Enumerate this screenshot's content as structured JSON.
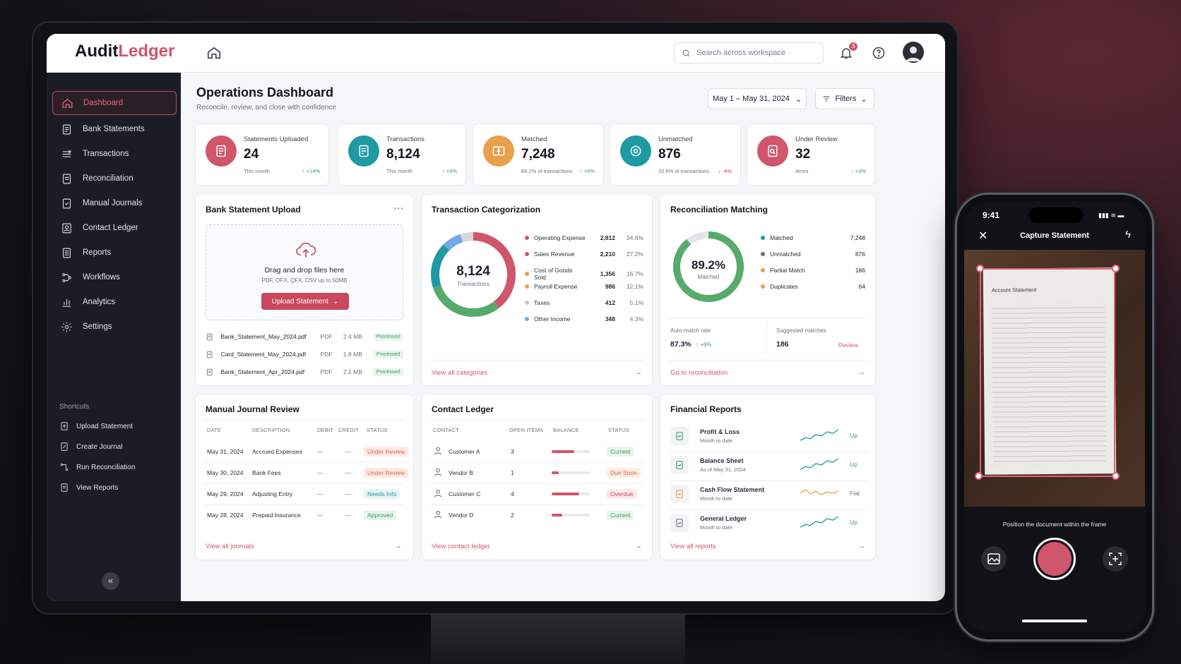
{
  "app": {
    "logo_a": "Audit",
    "logo_b": "Ledger",
    "search_placeholder": "Search across workspace",
    "notif_count": "3"
  },
  "nav": [
    {
      "label": "Dashboard"
    },
    {
      "label": "Bank Statements"
    },
    {
      "label": "Transactions"
    },
    {
      "label": "Reconciliation"
    },
    {
      "label": "Manual Journals"
    },
    {
      "label": "Contact Ledger"
    },
    {
      "label": "Reports"
    },
    {
      "label": "Workflows"
    },
    {
      "label": "Analytics"
    },
    {
      "label": "Settings"
    }
  ],
  "shortcuts": {
    "title": "Shortcuts",
    "items": [
      "Upload Statement",
      "Create Journal",
      "Run Reconciliation",
      "View Reports"
    ]
  },
  "header": {
    "title": "Operations Dashboard",
    "subtitle": "Reconcile, review, and close with confidence",
    "date_range": "May 1 – May 31, 2024",
    "filters": "Filters"
  },
  "kpis": [
    {
      "label": "Statements Uploaded",
      "value": "24",
      "sub": "This month",
      "change": "↑ +14%",
      "color": "#d0566c",
      "icon": "document-icon",
      "up": true
    },
    {
      "label": "Transactions",
      "value": "8,124",
      "sub": "This month",
      "change": "↑ +9%",
      "color": "#1f9aa3",
      "icon": "receipt-icon",
      "up": true
    },
    {
      "label": "Matched",
      "value": "7,248",
      "sub": "89.2% of transactions",
      "change": "↑ +6%",
      "color": "#e8a04c",
      "icon": "match-icon",
      "up": true
    },
    {
      "label": "Unmatched",
      "value": "876",
      "sub": "10.8% of transactions",
      "change": "↓ -4%",
      "color": "#1f9aa3",
      "icon": "target-icon",
      "up": false
    },
    {
      "label": "Under Review",
      "value": "32",
      "sub": "Items",
      "change": "↑ +3%",
      "color": "#d0566c",
      "icon": "review-icon",
      "up": true
    }
  ],
  "upload": {
    "title": "Bank Statement Upload",
    "drop_text": "Drag and drop files here",
    "formats": "PDF, OFX, QFX, CSV up to 50MB",
    "button": "Upload Statement",
    "files": [
      {
        "name": "Bank_Statement_May_2024.pdf",
        "type": "PDF",
        "size": "2.4 MB",
        "status": "Processed"
      },
      {
        "name": "Card_Statement_May_2024.pdf",
        "type": "PDF",
        "size": "1.8 MB",
        "status": "Processed"
      },
      {
        "name": "Bank_Statement_Apr_2024.pdf",
        "type": "PDF",
        "size": "2.1 MB",
        "status": "Processed"
      }
    ]
  },
  "categorization": {
    "title": "Transaction Categorization",
    "total": "8,124",
    "total_label": "Transactions",
    "link": "View all categories",
    "rows": [
      {
        "name": "Operating Expense",
        "value": "2,812",
        "pct": "34.6%",
        "color": "#d0566c"
      },
      {
        "name": "Sales Revenue",
        "value": "2,210",
        "pct": "27.2%",
        "color": "#d0566c"
      },
      {
        "name": "Cost of Goods Sold",
        "value": "1,356",
        "pct": "16.7%",
        "color": "#e8a04c"
      },
      {
        "name": "Payroll Expense",
        "value": "986",
        "pct": "12.1%",
        "color": "#e8a04c"
      },
      {
        "name": "Taxes",
        "value": "412",
        "pct": "5.1%",
        "color": "#c7c9ce"
      },
      {
        "name": "Other Income",
        "value": "348",
        "pct": "4.3%",
        "color": "#6fa9e8"
      }
    ]
  },
  "reconciliation": {
    "title": "Reconciliation Matching",
    "pct": "89.2%",
    "pct_label": "Matched",
    "link": "Go to reconciliation",
    "rows": [
      {
        "name": "Matched",
        "value": "7,248",
        "color": "#1f9aa3"
      },
      {
        "name": "Unmatched",
        "value": "876",
        "color": "#6b6f78"
      },
      {
        "name": "Partial Match",
        "value": "186",
        "color": "#e8a04c"
      },
      {
        "name": "Duplicates",
        "value": "64",
        "color": "#e8a04c"
      }
    ],
    "auto_label": "Auto-match rate",
    "auto_value": "87.3%",
    "auto_change": "↑ +6%",
    "sugg_label": "Suggested matches",
    "sugg_value": "186",
    "review": "Review"
  },
  "journals": {
    "title": "Manual Journal Review",
    "headers": [
      "DATE",
      "DESCRIPTION",
      "DEBIT",
      "CREDIT",
      "STATUS"
    ],
    "link": "View all journals",
    "rows": [
      {
        "date": "May 31, 2024",
        "desc": "Accrued Expenses",
        "debit": "—",
        "credit": "—",
        "status": "Under Review"
      },
      {
        "date": "May 30, 2024",
        "desc": "Bank Fees",
        "debit": "—",
        "credit": "—",
        "status": "Under Review"
      },
      {
        "date": "May 29, 2024",
        "desc": "Adjusting Entry",
        "debit": "—",
        "credit": "—",
        "status": "Needs Info"
      },
      {
        "date": "May 28, 2024",
        "desc": "Prepaid Insurance",
        "debit": "—",
        "credit": "—",
        "status": "Approved"
      }
    ]
  },
  "contacts": {
    "title": "Contact Ledger",
    "headers": [
      "CONTACT",
      "OPEN ITEMS",
      "BALANCE",
      "STATUS"
    ],
    "link": "View contact ledger",
    "rows": [
      {
        "name": "Customer A",
        "items": "3",
        "balance": 0.6,
        "status": "Current"
      },
      {
        "name": "Vendor B",
        "items": "1",
        "balance": 0.18,
        "status": "Due Soon"
      },
      {
        "name": "Customer C",
        "items": "4",
        "balance": 0.72,
        "status": "Overdue"
      },
      {
        "name": "Vendor D",
        "items": "2",
        "balance": 0.28,
        "status": "Current"
      }
    ]
  },
  "reports": {
    "title": "Financial Reports",
    "link": "View all reports",
    "rows": [
      {
        "name": "Profit & Loss",
        "sub": "Month to date",
        "trend": "Up"
      },
      {
        "name": "Balance Sheet",
        "sub": "As of May 31, 2024",
        "trend": "Up"
      },
      {
        "name": "Cash Flow Statement",
        "sub": "Month to date",
        "trend": "Flat"
      },
      {
        "name": "General Ledger",
        "sub": "Month to date",
        "trend": "Up"
      }
    ]
  },
  "phone": {
    "time": "9:41",
    "title": "Capture Statement",
    "doc_title": "Account Statement",
    "hint": "Position the document within the frame"
  }
}
